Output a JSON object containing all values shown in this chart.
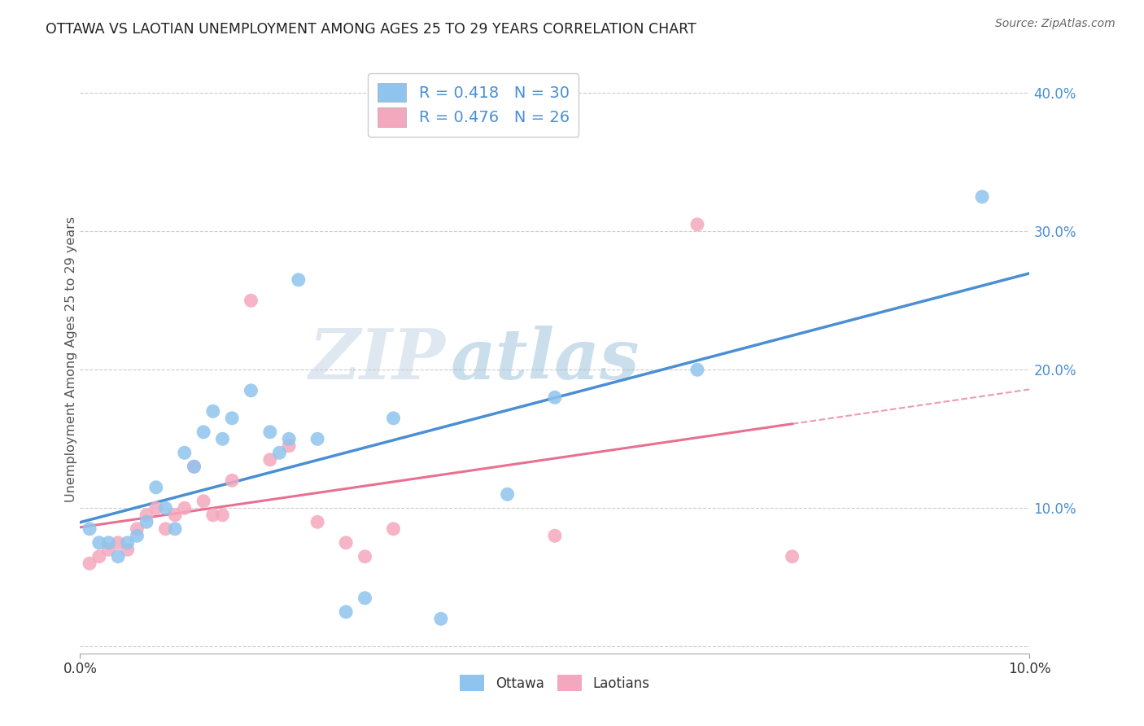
{
  "title": "OTTAWA VS LAOTIAN UNEMPLOYMENT AMONG AGES 25 TO 29 YEARS CORRELATION CHART",
  "source": "Source: ZipAtlas.com",
  "ylabel": "Unemployment Among Ages 25 to 29 years",
  "xlim": [
    0.0,
    0.1
  ],
  "ylim": [
    -0.005,
    0.42
  ],
  "xtick_positions": [
    0.0,
    0.1
  ],
  "xtick_labels": [
    "0.0%",
    "10.0%"
  ],
  "ytick_positions": [
    0.1,
    0.2,
    0.3,
    0.4
  ],
  "ytick_labels": [
    "10.0%",
    "20.0%",
    "30.0%",
    "40.0%"
  ],
  "grid_yticks": [
    0.0,
    0.1,
    0.2,
    0.3,
    0.4
  ],
  "ottawa_color": "#8EC4ED",
  "laotian_color": "#F4A8BE",
  "trend_ottawa_color": "#4A8FD4",
  "trend_laotian_color": "#E87090",
  "legend_text_color": "#4A8FD4",
  "r_ottawa": 0.418,
  "n_ottawa": 30,
  "r_laotian": 0.476,
  "n_laotian": 26,
  "ottawa_x": [
    0.001,
    0.002,
    0.003,
    0.004,
    0.005,
    0.006,
    0.007,
    0.008,
    0.009,
    0.01,
    0.011,
    0.012,
    0.013,
    0.014,
    0.015,
    0.016,
    0.018,
    0.02,
    0.021,
    0.022,
    0.023,
    0.025,
    0.028,
    0.03,
    0.033,
    0.038,
    0.045,
    0.05,
    0.065,
    0.095
  ],
  "ottawa_y": [
    0.085,
    0.075,
    0.075,
    0.065,
    0.075,
    0.08,
    0.09,
    0.115,
    0.1,
    0.085,
    0.14,
    0.13,
    0.155,
    0.17,
    0.15,
    0.165,
    0.185,
    0.155,
    0.14,
    0.15,
    0.265,
    0.15,
    0.025,
    0.035,
    0.165,
    0.02,
    0.11,
    0.18,
    0.2,
    0.325
  ],
  "laotian_x": [
    0.001,
    0.002,
    0.003,
    0.004,
    0.005,
    0.006,
    0.007,
    0.008,
    0.009,
    0.01,
    0.011,
    0.012,
    0.013,
    0.014,
    0.015,
    0.016,
    0.018,
    0.02,
    0.022,
    0.025,
    0.028,
    0.03,
    0.033,
    0.05,
    0.065,
    0.075
  ],
  "laotian_y": [
    0.06,
    0.065,
    0.07,
    0.075,
    0.07,
    0.085,
    0.095,
    0.1,
    0.085,
    0.095,
    0.1,
    0.13,
    0.105,
    0.095,
    0.095,
    0.12,
    0.25,
    0.135,
    0.145,
    0.09,
    0.075,
    0.065,
    0.085,
    0.08,
    0.305,
    0.065
  ],
  "watermark_zip": "ZIP",
  "watermark_atlas": "atlas",
  "background_color": "#FFFFFF",
  "grid_color": "#CCCCCC"
}
